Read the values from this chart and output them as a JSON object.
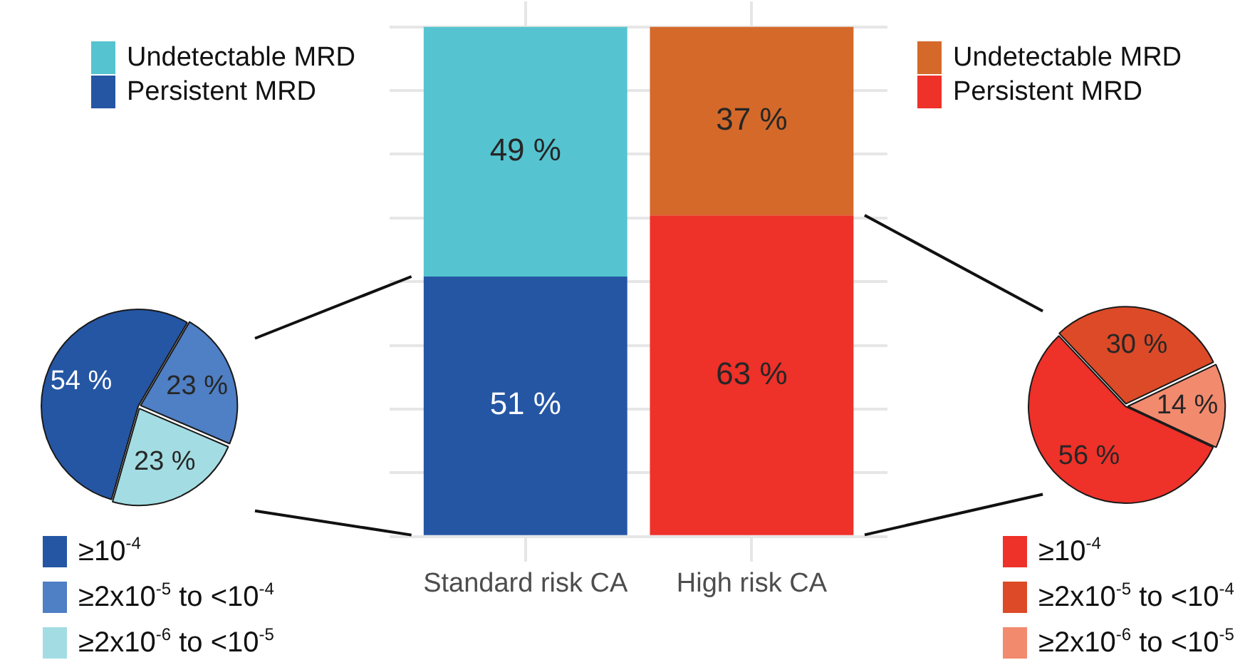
{
  "chart_data": [
    {
      "type": "pie",
      "categories": [
        "≥10$^{-4}$",
        "≥2x10$^{-5}$ to <10$^{-4}$",
        "≥2x10$^{-6}$ to <10$^{-5}$"
      ],
      "values": [
        54,
        23,
        23
      ],
      "colors": [
        "#2556a4",
        "#4f7fc4",
        "#a3dde3"
      ],
      "value_labels": [
        "54 %",
        "23 %",
        "23 %"
      ],
      "legend": "bottom"
    },
    {
      "type": "bar",
      "categories": [
        "Standard risk CA",
        "High risk CA"
      ],
      "series": [
        {
          "name": "Persistent MRD",
          "color": "#2556a4",
          "values": [
            51,
            null
          ],
          "value_labels": [
            "51 %",
            null
          ]
        },
        {
          "name": "Undetectable MRD",
          "color": "#55c4d0",
          "values": [
            49,
            null
          ],
          "value_labels": [
            "49 %",
            null
          ]
        },
        {
          "name": "Persistent MRD",
          "color": "#ee3129",
          "values": [
            null,
            63
          ],
          "value_labels": [
            null,
            "63 %"
          ]
        },
        {
          "name": "Undetectable MRD",
          "color": "#d4692a",
          "values": [
            null,
            37
          ],
          "value_labels": [
            null,
            "37 %"
          ]
        }
      ],
      "stacked": true,
      "ylim": [
        -5,
        105
      ],
      "yticks": [
        {
          "value": 0,
          "label": null
        },
        {
          "value": 12.5,
          "label": null
        },
        {
          "value": 25,
          "label": null
        },
        {
          "value": 37.5,
          "label": null
        },
        {
          "value": 50,
          "label": null
        },
        {
          "value": 62.5,
          "label": null
        },
        {
          "value": 75,
          "label": null
        },
        {
          "value": 87.5,
          "label": null
        },
        {
          "value": 100,
          "label": null
        }
      ],
      "tick_labels": "x",
      "grid": true,
      "legend": "top"
    },
    {
      "type": "pie",
      "categories": [
        "≥10$^{-4}$",
        "≥2x10$^{-5}$ to <10$^{-4}$",
        "≥2x10$^{-6}$ to <10$^{-5}$"
      ],
      "values": [
        56,
        30,
        14
      ],
      "colors": [
        "#ee3129",
        "#dc4a28",
        "#f28a6e"
      ],
      "value_labels": [
        "56 %",
        "30 %",
        "14 %"
      ],
      "legend": "bottom"
    }
  ]
}
